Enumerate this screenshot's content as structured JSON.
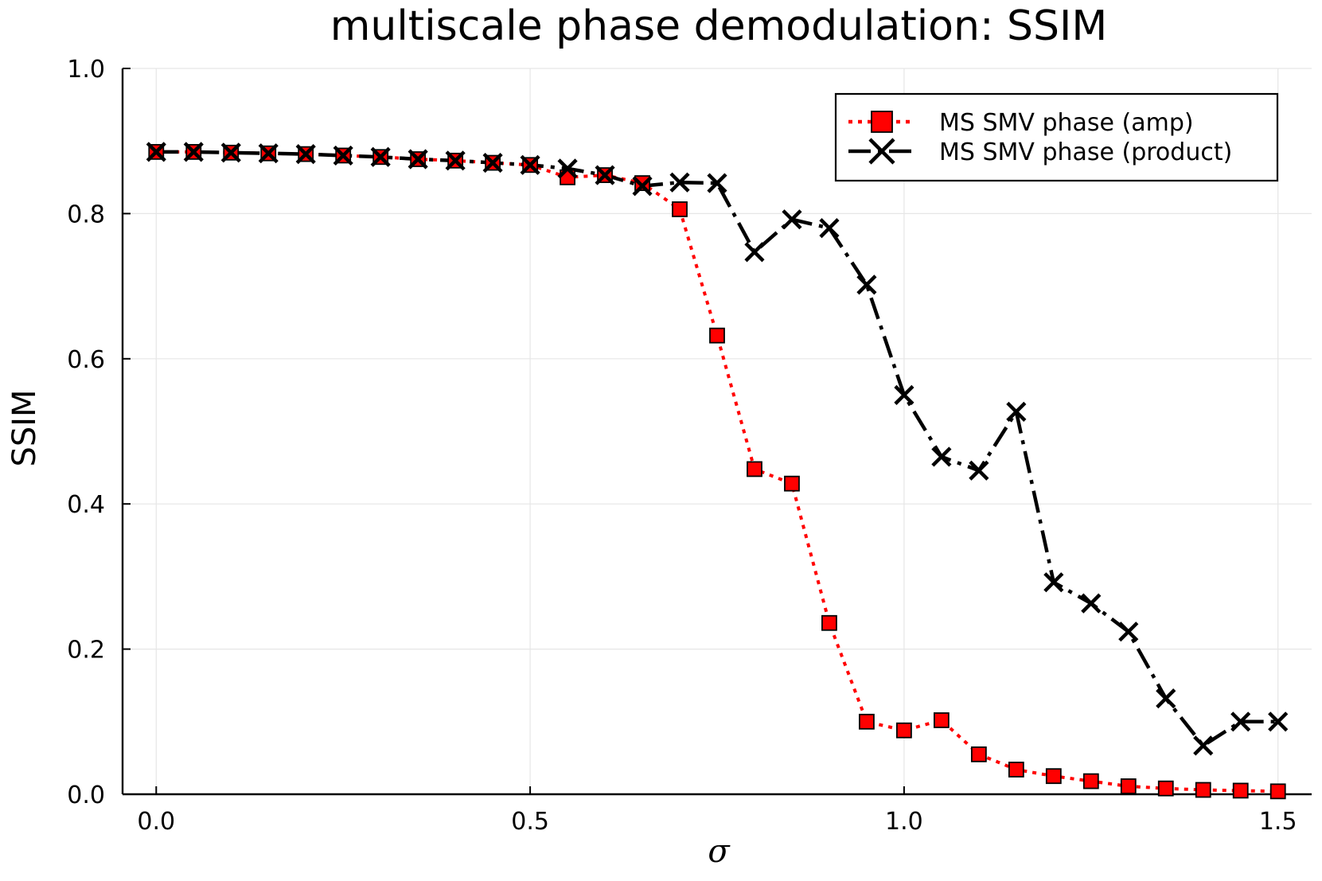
{
  "chart_data": {
    "type": "line",
    "title": "multiscale phase demodulation: SSIM",
    "xlabel": "σ",
    "ylabel": "SSIM",
    "xlim": [
      -0.045,
      1.545
    ],
    "ylim": [
      0.0,
      1.0
    ],
    "xticks": [
      0.0,
      0.5,
      1.0,
      1.5
    ],
    "xtick_labels": [
      "0.0",
      "0.5",
      "1.0",
      "1.5"
    ],
    "yticks": [
      0.0,
      0.2,
      0.4,
      0.6,
      0.8,
      1.0
    ],
    "ytick_labels": [
      "0.0",
      "0.2",
      "0.4",
      "0.6",
      "0.8",
      "1.0"
    ],
    "grid": true,
    "legend_position": "top-right",
    "x": [
      0.0,
      0.05,
      0.1,
      0.15,
      0.2,
      0.25,
      0.3,
      0.35,
      0.4,
      0.45,
      0.5,
      0.55,
      0.6,
      0.65,
      0.7,
      0.75,
      0.8,
      0.85,
      0.9,
      0.95,
      1.0,
      1.05,
      1.1,
      1.15,
      1.2,
      1.25,
      1.3,
      1.35,
      1.4,
      1.45,
      1.5
    ],
    "series": [
      {
        "name": "MS SMV phase (amp)",
        "color": "#ff0000",
        "marker": "square",
        "line_style": "dotted",
        "values": [
          0.885,
          0.885,
          0.884,
          0.883,
          0.882,
          0.88,
          0.878,
          0.875,
          0.873,
          0.87,
          0.867,
          0.85,
          0.853,
          0.842,
          0.806,
          0.632,
          0.448,
          0.428,
          0.236,
          0.1,
          0.088,
          0.102,
          0.055,
          0.034,
          0.025,
          0.018,
          0.011,
          0.008,
          0.006,
          0.005,
          0.004
        ]
      },
      {
        "name": "MS SMV phase (product)",
        "color": "#000000",
        "marker": "cross",
        "line_style": "dashdot",
        "values": [
          0.885,
          0.885,
          0.884,
          0.883,
          0.882,
          0.88,
          0.878,
          0.875,
          0.873,
          0.87,
          0.867,
          0.862,
          0.853,
          0.838,
          0.843,
          0.842,
          0.747,
          0.792,
          0.78,
          0.702,
          0.55,
          0.465,
          0.446,
          0.527,
          0.292,
          0.263,
          0.224,
          0.132,
          0.067,
          0.1,
          0.1
        ]
      }
    ]
  }
}
